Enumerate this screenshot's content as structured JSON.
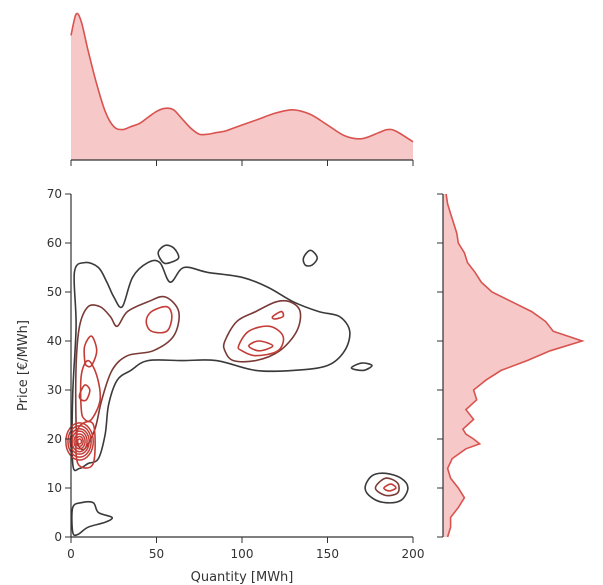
{
  "colors": {
    "kde_line": "#d9534f",
    "kde_fill": "#f6c8c8",
    "contour_outer": "#3a3a3a",
    "contour_mid": "#7a3a36",
    "contour_inner": "#c43c36",
    "axis": "#333333"
  },
  "chart_data": {
    "type": "joint-kde",
    "xlabel": "Quantity [MWh]",
    "ylabel": "Price [€/MWh]",
    "xlim": [
      0,
      200
    ],
    "ylim": [
      0,
      70
    ],
    "x_ticks": [
      0,
      50,
      100,
      150,
      200
    ],
    "y_ticks": [
      0,
      10,
      20,
      30,
      40,
      50,
      60,
      70
    ],
    "marginal_x": {
      "x": [
        0,
        3,
        6,
        10,
        15,
        20,
        25,
        30,
        35,
        40,
        45,
        50,
        55,
        60,
        65,
        70,
        75,
        80,
        85,
        90,
        95,
        100,
        110,
        120,
        130,
        140,
        150,
        160,
        170,
        180,
        185,
        190,
        200
      ],
      "density": [
        0.82,
        0.96,
        0.91,
        0.72,
        0.5,
        0.32,
        0.22,
        0.2,
        0.22,
        0.24,
        0.28,
        0.32,
        0.34,
        0.33,
        0.27,
        0.21,
        0.17,
        0.17,
        0.18,
        0.19,
        0.21,
        0.23,
        0.27,
        0.31,
        0.33,
        0.3,
        0.23,
        0.16,
        0.14,
        0.18,
        0.2,
        0.19,
        0.12
      ]
    },
    "marginal_y": {
      "y": [
        0,
        2,
        4,
        6,
        8,
        10,
        12,
        14,
        16,
        18,
        19,
        20,
        21,
        22,
        24,
        26,
        28,
        30,
        32,
        34,
        36,
        38,
        40,
        42,
        44,
        46,
        48,
        50,
        52,
        54,
        56,
        58,
        60,
        62,
        64,
        66,
        68,
        70
      ],
      "density": [
        0.03,
        0.05,
        0.05,
        0.1,
        0.14,
        0.1,
        0.05,
        0.03,
        0.06,
        0.15,
        0.24,
        0.2,
        0.15,
        0.13,
        0.2,
        0.15,
        0.22,
        0.2,
        0.28,
        0.38,
        0.55,
        0.7,
        0.91,
        0.72,
        0.67,
        0.58,
        0.45,
        0.32,
        0.25,
        0.21,
        0.16,
        0.14,
        0.1,
        0.09,
        0.07,
        0.05,
        0.03,
        0.02
      ]
    },
    "contours": [
      {
        "level": 1,
        "points": [
          [
            1,
            15
          ],
          [
            1,
            29
          ],
          [
            3,
            43
          ],
          [
            2,
            54
          ],
          [
            8,
            56
          ],
          [
            16,
            55
          ],
          [
            21,
            52
          ],
          [
            25,
            49
          ],
          [
            30,
            47
          ],
          [
            36,
            53
          ],
          [
            45,
            56
          ],
          [
            52,
            56
          ],
          [
            58,
            52
          ],
          [
            66,
            55
          ],
          [
            80,
            54
          ],
          [
            100,
            53
          ],
          [
            115,
            51
          ],
          [
            130,
            48
          ],
          [
            145,
            46
          ],
          [
            157,
            45
          ],
          [
            163,
            42
          ],
          [
            160,
            38
          ],
          [
            150,
            35
          ],
          [
            130,
            34
          ],
          [
            108,
            34
          ],
          [
            85,
            36
          ],
          [
            65,
            36
          ],
          [
            45,
            36
          ],
          [
            35,
            34
          ],
          [
            27,
            32
          ],
          [
            22,
            27
          ],
          [
            20,
            21
          ],
          [
            16,
            16
          ],
          [
            10,
            15
          ],
          [
            5,
            14
          ],
          [
            1,
            15
          ]
        ]
      },
      {
        "level": 1,
        "points": [
          [
            51,
            58
          ],
          [
            55,
            59.5
          ],
          [
            60,
            59
          ],
          [
            63,
            57
          ],
          [
            58,
            56
          ],
          [
            54,
            56
          ],
          [
            51,
            58
          ]
        ]
      },
      {
        "level": 1,
        "points": [
          [
            136,
            57
          ],
          [
            140,
            58.5
          ],
          [
            144,
            57
          ],
          [
            141,
            55.5
          ],
          [
            137,
            55.5
          ],
          [
            136,
            57
          ]
        ]
      },
      {
        "level": 1,
        "points": [
          [
            164,
            34.5
          ],
          [
            170,
            35.5
          ],
          [
            176,
            35
          ],
          [
            171,
            34
          ],
          [
            164,
            34.5
          ]
        ]
      },
      {
        "level": 1,
        "points": [
          [
            172,
            10
          ],
          [
            176,
            12.5
          ],
          [
            184,
            13
          ],
          [
            193,
            12
          ],
          [
            197,
            10
          ],
          [
            193,
            7.5
          ],
          [
            184,
            7
          ],
          [
            176,
            8
          ],
          [
            172,
            10
          ]
        ]
      },
      {
        "level": 1,
        "points": [
          [
            1,
            1
          ],
          [
            1,
            6
          ],
          [
            6,
            7
          ],
          [
            13,
            7
          ],
          [
            16,
            5
          ],
          [
            24,
            4
          ],
          [
            20,
            3
          ],
          [
            10,
            2
          ],
          [
            4,
            0.5
          ],
          [
            1,
            1
          ]
        ]
      },
      {
        "level": 2,
        "points": [
          [
            3,
            23
          ],
          [
            3,
            35
          ],
          [
            5,
            43
          ],
          [
            10,
            47
          ],
          [
            17,
            47
          ],
          [
            23,
            45
          ],
          [
            27,
            43
          ],
          [
            33,
            46
          ],
          [
            45,
            48
          ],
          [
            55,
            49
          ],
          [
            63,
            46
          ],
          [
            60,
            41
          ],
          [
            48,
            38
          ],
          [
            33,
            37
          ],
          [
            24,
            34
          ],
          [
            18,
            28
          ],
          [
            14,
            22
          ],
          [
            8,
            18
          ],
          [
            4,
            19
          ],
          [
            3,
            23
          ]
        ]
      },
      {
        "level": 2,
        "points": [
          [
            90,
            40
          ],
          [
            97,
            44
          ],
          [
            108,
            46
          ],
          [
            120,
            48
          ],
          [
            128,
            48
          ],
          [
            134,
            46
          ],
          [
            132,
            42
          ],
          [
            122,
            38
          ],
          [
            108,
            36
          ],
          [
            95,
            36
          ],
          [
            90,
            38
          ],
          [
            90,
            40
          ]
        ]
      },
      {
        "level": 2,
        "points": [
          [
            178,
            10
          ],
          [
            184,
            12
          ],
          [
            191,
            11
          ],
          [
            191,
            9
          ],
          [
            184,
            8.5
          ],
          [
            178,
            10
          ]
        ]
      },
      {
        "level": 3,
        "points": [
          [
            6,
            26
          ],
          [
            6,
            33
          ],
          [
            10,
            36
          ],
          [
            15,
            33
          ],
          [
            17,
            28
          ],
          [
            12,
            24
          ],
          [
            8,
            24
          ],
          [
            6,
            26
          ]
        ]
      },
      {
        "level": 3,
        "points": [
          [
            8,
            36
          ],
          [
            8,
            39
          ],
          [
            12,
            41
          ],
          [
            15,
            38
          ],
          [
            12,
            35
          ],
          [
            9,
            35
          ],
          [
            8,
            36
          ]
        ]
      },
      {
        "level": 3,
        "points": [
          [
            44,
            44
          ],
          [
            47,
            46
          ],
          [
            56,
            47
          ],
          [
            59,
            45
          ],
          [
            56,
            42
          ],
          [
            47,
            42
          ],
          [
            44,
            44
          ]
        ]
      },
      {
        "level": 3,
        "points": [
          [
            98,
            39
          ],
          [
            104,
            42
          ],
          [
            116,
            43
          ],
          [
            124,
            41
          ],
          [
            121,
            38
          ],
          [
            108,
            37
          ],
          [
            100,
            38
          ],
          [
            98,
            39
          ]
        ]
      },
      {
        "level": 3,
        "points": [
          [
            118,
            45
          ],
          [
            123,
            46
          ],
          [
            124,
            45
          ],
          [
            119,
            44.5
          ],
          [
            118,
            45
          ]
        ]
      },
      {
        "level": 4,
        "points": [
          [
            4,
            22
          ],
          [
            4,
            15
          ],
          [
            13,
            15
          ],
          [
            13,
            23
          ],
          [
            4,
            22
          ]
        ]
      },
      {
        "level": 4,
        "points": [
          [
            5,
            29
          ],
          [
            8,
            31
          ],
          [
            11,
            30
          ],
          [
            9,
            28
          ],
          [
            6,
            28
          ],
          [
            5,
            29
          ]
        ]
      },
      {
        "level": 4,
        "points": [
          [
            104,
            39
          ],
          [
            110,
            40
          ],
          [
            118,
            39
          ],
          [
            110,
            38
          ],
          [
            104,
            39
          ]
        ]
      },
      {
        "level": 4,
        "points": [
          [
            183,
            10
          ],
          [
            187,
            10.8
          ],
          [
            190,
            10
          ],
          [
            186,
            9.4
          ],
          [
            183,
            10
          ]
        ]
      }
    ],
    "peak_rings": [
      {
        "x": 5,
        "y": 19.5,
        "rx": [
          8,
          6.8,
          5.6,
          4.4,
          3.2,
          2.1,
          1.1
        ],
        "ry": [
          3.8,
          3.2,
          2.6,
          2.1,
          1.5,
          1.0,
          0.5
        ]
      }
    ]
  }
}
